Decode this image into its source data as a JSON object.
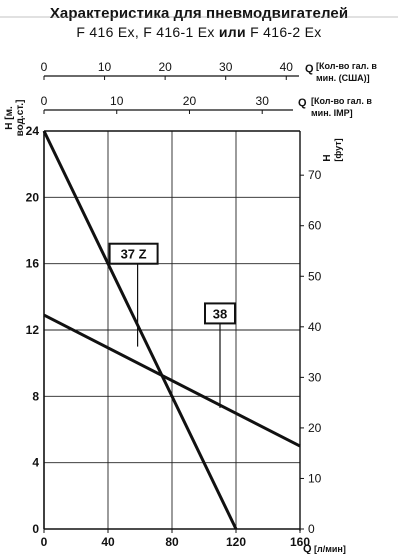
{
  "chart_data": {
    "type": "line",
    "title": "Характеристика для пневмодвигателей",
    "subtitle": {
      "part1": "F 416 Ex, F 416-1 Ex",
      "conj": "или",
      "part2": "F 416-2 Ex"
    },
    "ylabel_left": [
      "H [м.",
      "вод.ст.]"
    ],
    "ylabel_right": [
      "H",
      "[фут]"
    ],
    "xlabel_bottom": {
      "symbol": "Q",
      "unit": "[л/мин]"
    },
    "xlabel_top_us": {
      "symbol": "Q",
      "lines": [
        "[Кол-во гал. в",
        "мин. (США)]"
      ]
    },
    "xlabel_top_imp": {
      "symbol": "Q",
      "lines": [
        "[Кол-во гал. в",
        "мин. IMP]"
      ]
    },
    "xlim": [
      0,
      160
    ],
    "ylim": [
      0,
      24
    ],
    "x_ticks": [
      0,
      40,
      80,
      120,
      160
    ],
    "y_ticks": [
      0,
      4,
      8,
      12,
      16,
      20,
      24
    ],
    "top_us_ticks": [
      0,
      10,
      20,
      30,
      40
    ],
    "top_imp_ticks": [
      0,
      10,
      20,
      30
    ],
    "right_ft_ticks": [
      0,
      10,
      20,
      30,
      40,
      50,
      60,
      70
    ],
    "grid": true,
    "series": [
      {
        "name": "37 Z",
        "x": [
          0,
          120
        ],
        "y": [
          24,
          0
        ]
      },
      {
        "name": "38",
        "x": [
          0,
          160
        ],
        "y": [
          12.9,
          5.0
        ]
      }
    ],
    "labels": [
      {
        "text": "37 Z",
        "box_x": 56,
        "box_y": 16.6,
        "pointer_x": 58.5,
        "pointer_y": 11.0
      },
      {
        "text": "38",
        "box_x": 110,
        "box_y": 13.0,
        "pointer_x": 110,
        "pointer_y": 7.3
      }
    ]
  }
}
